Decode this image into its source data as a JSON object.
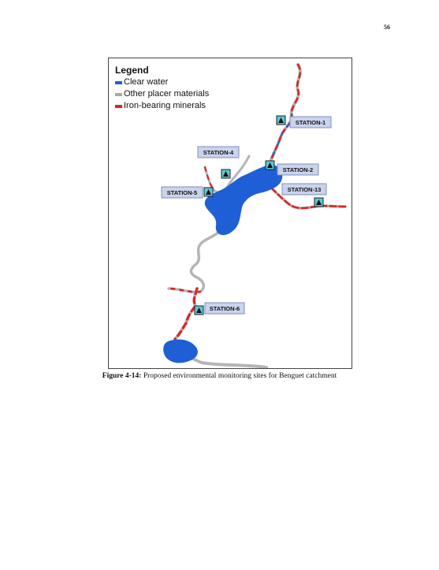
{
  "page": {
    "number": "56"
  },
  "legend": {
    "title": "Legend",
    "items": [
      {
        "label": "Clear water",
        "color": "#1f5fd6"
      },
      {
        "label": "Other placer materials",
        "color": "#a8a8a8"
      },
      {
        "label": "Iron-bearing minerals",
        "color": "#e0221f"
      }
    ]
  },
  "stations": [
    {
      "label": "STATION-1"
    },
    {
      "label": "STATION-2"
    },
    {
      "label": "STATION-13"
    },
    {
      "label": "STATION-4"
    },
    {
      "label": "STATION-5"
    },
    {
      "label": "STATION-6"
    }
  ],
  "caption": {
    "label": "Figure 4-14:",
    "text": " Proposed environmental monitoring sites for Benguet catchment"
  },
  "colors": {
    "marker_fill": "#5bc8d8",
    "label_fill": "#c9d3ec",
    "label_border": "#7f8fb8"
  }
}
